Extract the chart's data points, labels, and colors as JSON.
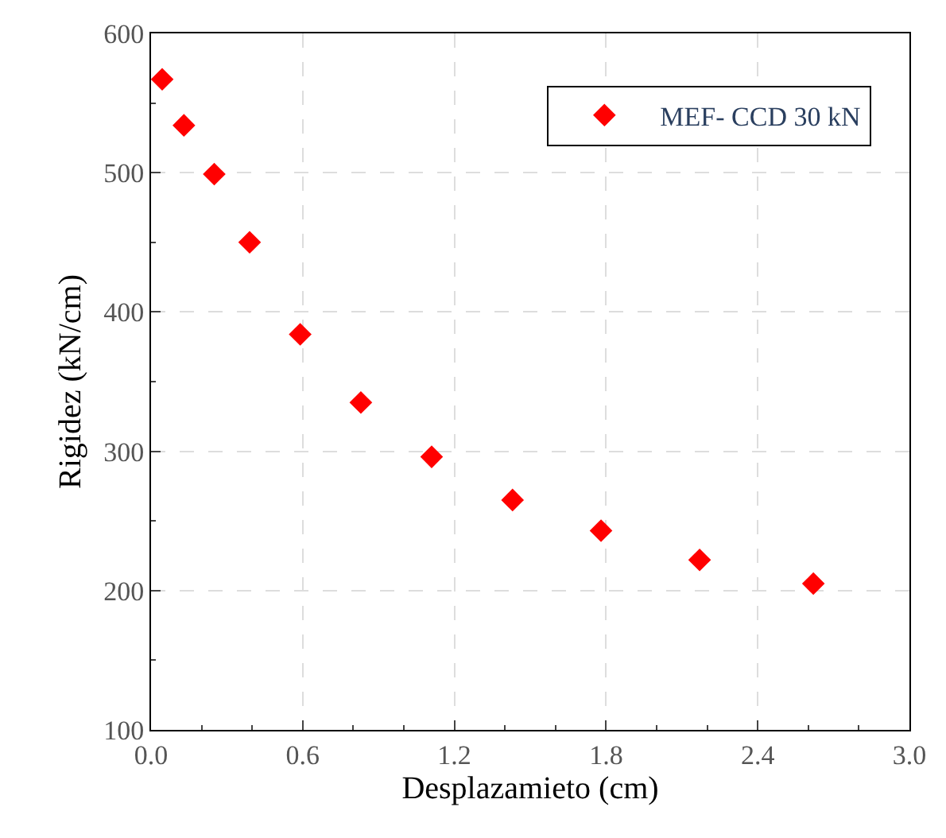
{
  "chart_data": {
    "type": "scatter",
    "xlabel": "Desplazamieto (cm)",
    "ylabel": "Rigidez (kN/cm)",
    "xlim": [
      0,
      3.0
    ],
    "xticks": [
      {
        "value": 0,
        "label": "0.0"
      },
      0.6,
      1.2,
      1.8,
      2.4,
      {
        "value": 3.0,
        "label": "3.0"
      }
    ],
    "ylim": [
      100,
      600
    ],
    "yticks": [
      100,
      200,
      300,
      400,
      500,
      600
    ],
    "grid": true,
    "legend": "top right",
    "marker": "diamond",
    "series": [
      {
        "name": "MEF- CCD 30 kN",
        "color": "#ff0000",
        "x": [
          0.044,
          0.13,
          0.25,
          0.39,
          0.59,
          0.83,
          1.11,
          1.43,
          1.78,
          2.17,
          2.62
        ],
        "values": [
          567,
          534,
          499,
          450,
          384,
          335,
          296,
          265,
          243,
          222,
          205
        ]
      }
    ]
  }
}
